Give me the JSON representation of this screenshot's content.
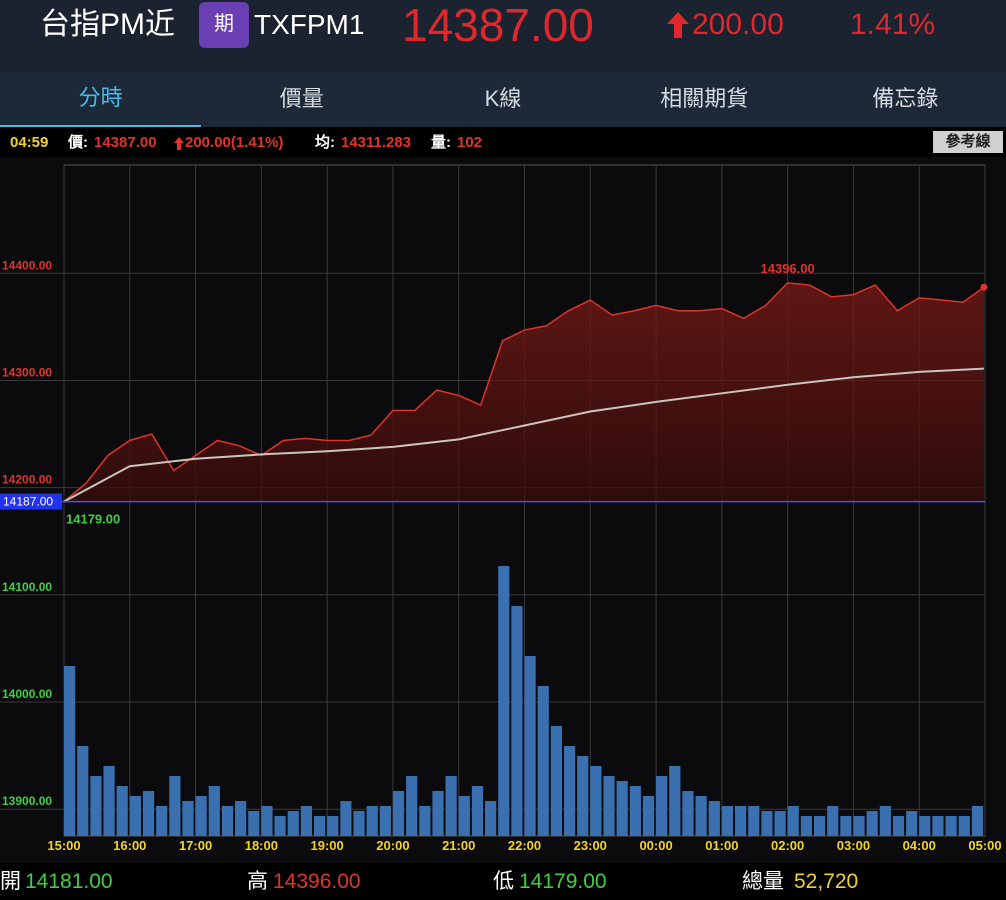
{
  "header": {
    "name": "台指PM近",
    "badge": "期",
    "code": "TXFPM1",
    "price": "14387.00",
    "change": "200.00",
    "percent": "1.41%"
  },
  "tabs": [
    "分時",
    "價量",
    "K線",
    "相關期貨",
    "備忘錄"
  ],
  "info": {
    "time": "04:59",
    "price_label": "價:",
    "price": "14387.00",
    "change": "200.00(1.41%)",
    "avg_label": "均:",
    "avg": "14311.283",
    "vol_label": "量:",
    "vol": "102",
    "button": "參考線"
  },
  "chart_data": {
    "type": "line",
    "xlim": [
      0,
      840
    ],
    "xticks": [
      {
        "value": 0,
        "label": "15:00"
      },
      {
        "value": 60,
        "label": "16:00"
      },
      {
        "value": 120,
        "label": "17:00"
      },
      {
        "value": 180,
        "label": "18:00"
      },
      {
        "value": 240,
        "label": "19:00"
      },
      {
        "value": 300,
        "label": "20:00"
      },
      {
        "value": 360,
        "label": "21:00"
      },
      {
        "value": 420,
        "label": "22:00"
      },
      {
        "value": 480,
        "label": "23:00"
      },
      {
        "value": 540,
        "label": "00:00"
      },
      {
        "value": 600,
        "label": "01:00"
      },
      {
        "value": 660,
        "label": "02:00"
      },
      {
        "value": 720,
        "label": "03:00"
      },
      {
        "value": 780,
        "label": "04:00"
      },
      {
        "value": 840,
        "label": "05:00"
      }
    ],
    "ylim": [
      13875,
      14501
    ],
    "yticks": [
      {
        "value": 13900,
        "label": "13900.00"
      },
      {
        "value": 14000,
        "label": "14000.00"
      },
      {
        "value": 14100,
        "label": "14100.00"
      },
      {
        "value": 14200,
        "label": "14200.00"
      },
      {
        "value": 14300,
        "label": "14300.00"
      },
      {
        "value": 14400,
        "label": "14400.00"
      }
    ],
    "reference": {
      "value": 14187,
      "label": "14187.00"
    },
    "annotations": [
      "14396.00",
      "14179.00"
    ],
    "series": [
      {
        "color": "#e0332b",
        "x": [
          0,
          20,
          40,
          60,
          80,
          100,
          120,
          140,
          160,
          180,
          200,
          220,
          240,
          260,
          280,
          300,
          320,
          340,
          360,
          380,
          400,
          420,
          440,
          460,
          480,
          500,
          520,
          540,
          560,
          580,
          600,
          620,
          640,
          660,
          680,
          700,
          720,
          740,
          760,
          780,
          800,
          820,
          839
        ],
        "values": [
          14187,
          14204,
          14230,
          14244,
          14250,
          14216,
          14230,
          14244,
          14239,
          14230,
          14244,
          14246,
          14244,
          14244,
          14249,
          14272,
          14272,
          14291,
          14286,
          14277,
          14337,
          14347,
          14351,
          14365,
          14375,
          14361,
          14365,
          14370,
          14365,
          14365,
          14367,
          14358,
          14370,
          14391,
          14389,
          14378,
          14380,
          14389,
          14365,
          14377,
          14375,
          14373,
          14387
        ]
      },
      {
        "color": "#c9c4c0",
        "x": [
          0,
          60,
          120,
          180,
          240,
          300,
          360,
          420,
          480,
          540,
          600,
          660,
          720,
          780,
          839
        ],
        "values": [
          14187,
          14220,
          14227,
          14231,
          14234,
          14238,
          14245,
          14258,
          14271,
          14280,
          14288,
          14296,
          14303,
          14308,
          14311
        ]
      }
    ],
    "volume_color": "#3a6fb0",
    "volume_lim": [
      0,
      300
    ],
    "volume": [
      170,
      90,
      60,
      70,
      50,
      40,
      45,
      30,
      60,
      35,
      40,
      50,
      30,
      35,
      25,
      30,
      20,
      25,
      30,
      20,
      20,
      35,
      25,
      30,
      30,
      45,
      60,
      30,
      45,
      60,
      40,
      50,
      35,
      270,
      230,
      180,
      150,
      110,
      90,
      80,
      70,
      60,
      55,
      50,
      40,
      60,
      70,
      45,
      40,
      35,
      30,
      30,
      30,
      25,
      25,
      30,
      20,
      20,
      30,
      20,
      20,
      25,
      30,
      20,
      25,
      20,
      20,
      20,
      20,
      30
    ]
  },
  "footer": {
    "open_label": "開",
    "open": "14181.00",
    "high_label": "高",
    "high": "14396.00",
    "low_label": "低",
    "low": "14179.00",
    "vol_label": "總量",
    "vol": "52,720"
  }
}
